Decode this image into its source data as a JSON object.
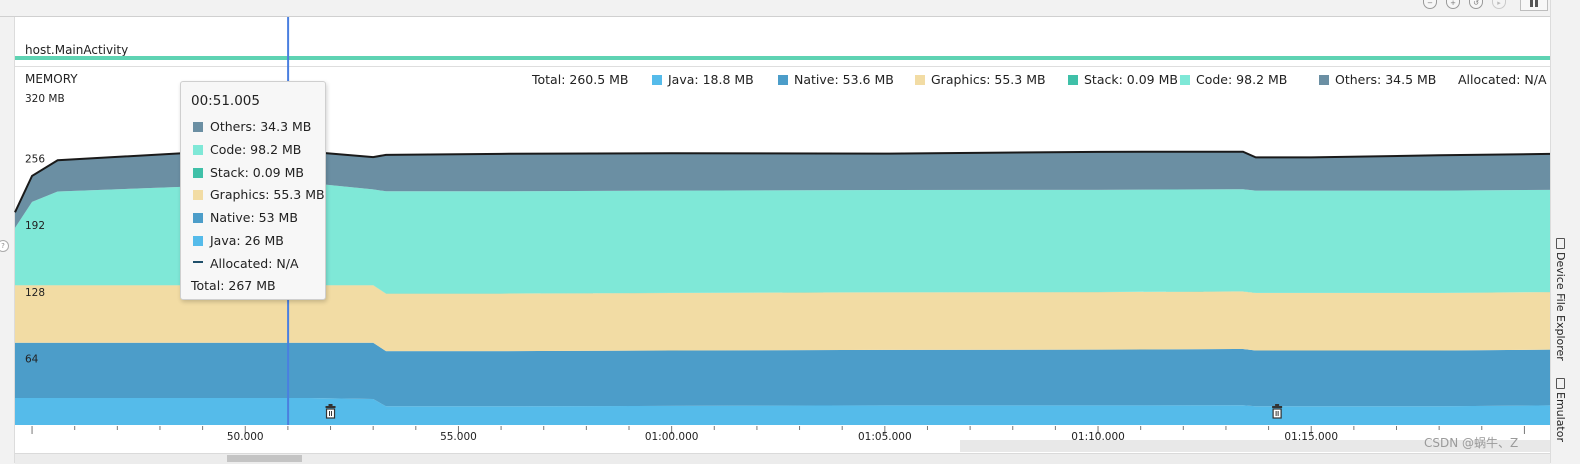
{
  "activity": {
    "label": "host.MainActivity"
  },
  "monitor": {
    "title": "MEMORY",
    "y_unit_label": "320 MB"
  },
  "legend": {
    "total": "Total: 260.5 MB",
    "items": [
      {
        "label": "Java: 18.8 MB",
        "color": "#55bbea"
      },
      {
        "label": "Native: 53.6 MB",
        "color": "#4c9dc9"
      },
      {
        "label": "Graphics: 55.3 MB",
        "color": "#f2dca4"
      },
      {
        "label": "Stack: 0.09 MB",
        "color": "#3fc0a8"
      },
      {
        "label": "Code: 98.2 MB",
        "color": "#7fe8d7"
      },
      {
        "label": "Others: 34.5 MB",
        "color": "#6b8fa3"
      },
      {
        "label": "Allocated: N/A",
        "color": ""
      }
    ]
  },
  "tooltip": {
    "time": "00:51.005",
    "rows": [
      {
        "label": "Others: 34.3 MB",
        "color": "#6b8fa3"
      },
      {
        "label": "Code: 98.2 MB",
        "color": "#7fe8d7"
      },
      {
        "label": "Stack: 0.09 MB",
        "color": "#3fc0a8"
      },
      {
        "label": "Graphics: 55.3 MB",
        "color": "#f2dca4"
      },
      {
        "label": "Native: 53 MB",
        "color": "#4c9dc9"
      },
      {
        "label": "Java: 26 MB",
        "color": "#55bbea"
      },
      {
        "label": "Allocated: N/A",
        "color": ""
      }
    ],
    "total": "Total: 267 MB"
  },
  "side_tabs": {
    "device_file_explorer": "Device File Explorer",
    "emulator": "Emulator"
  },
  "watermark": "CSDN @蜗牛、Z",
  "chart_data": {
    "type": "area",
    "stacked": true,
    "x_unit": "seconds",
    "xlim": [
      44.6,
      80.6
    ],
    "ylim": [
      0,
      320
    ],
    "y_ticks": [
      64,
      128,
      192,
      256
    ],
    "y_tick_labels": [
      "64",
      "128",
      "192",
      "256"
    ],
    "x_ticks": [
      50,
      55,
      60,
      65,
      70,
      75
    ],
    "x_tick_labels": [
      "50.000",
      "55.000",
      "01:00.000",
      "01:05.000",
      "01:10.000",
      "01:15.000"
    ],
    "x": [
      44.6,
      45.0,
      45.6,
      51.0,
      51.2,
      51.5,
      53.0,
      53.3,
      56.0,
      60.0,
      65.0,
      70.0,
      73.2,
      73.4,
      73.7,
      75.0,
      78.0,
      80.6
    ],
    "series": [
      {
        "name": "Java",
        "color": "#55bbea",
        "values": [
          26,
          26,
          26,
          26,
          26,
          26,
          25,
          18,
          18,
          18.4,
          18.8,
          18.8,
          19,
          19,
          18,
          18,
          18,
          18.8
        ]
      },
      {
        "name": "Native",
        "color": "#4c9dc9",
        "values": [
          53,
          53,
          53,
          53,
          53,
          53,
          54,
          53,
          53,
          53.2,
          53.4,
          53.6,
          54,
          54,
          53.6,
          53.6,
          53.6,
          53.6
        ]
      },
      {
        "name": "Graphics",
        "color": "#f2dca4",
        "values": [
          55.3,
          55.3,
          55.3,
          55.3,
          55.3,
          55.3,
          55.3,
          55.3,
          55.3,
          55.3,
          55.3,
          55.3,
          55.3,
          55.3,
          55.3,
          55.3,
          55.3,
          55.3
        ]
      },
      {
        "name": "Stack",
        "color": "#3fc0a8",
        "values": [
          0.09,
          0.09,
          0.09,
          0.09,
          0.09,
          0.09,
          0.09,
          0.09,
          0.09,
          0.09,
          0.09,
          0.09,
          0.09,
          0.09,
          0.09,
          0.09,
          0.09,
          0.09
        ]
      },
      {
        "name": "Code",
        "color": "#7fe8d7",
        "values": [
          55,
          80,
          90,
          98.2,
          98.2,
          98.2,
          92,
          98.2,
          98.2,
          98.2,
          98.2,
          98.2,
          98.2,
          98.2,
          98.2,
          98.2,
          98.2,
          98.2
        ]
      },
      {
        "name": "Others",
        "color": "#6b8fa3",
        "values": [
          15,
          25,
          30,
          34.3,
          32,
          30,
          31,
          35,
          36,
          36,
          35,
          36.5,
          36,
          36,
          32,
          32,
          34,
          34.5
        ]
      }
    ],
    "total_line": {
      "color": "#1a1a1a"
    },
    "selection_x": 51.005,
    "gc_events_x": [
      52.0,
      74.2
    ]
  }
}
